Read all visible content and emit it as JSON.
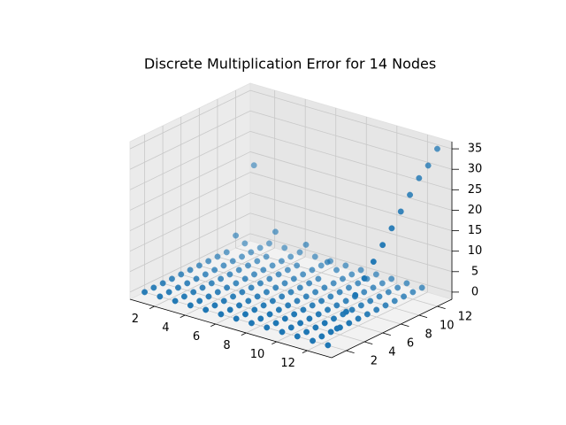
{
  "chart_data": {
    "type": "scatter3d",
    "title": "Discrete Multiplication Error for 14 Nodes",
    "color": "#1f77b4",
    "x": [
      1,
      2,
      3,
      4,
      5,
      6,
      7,
      8,
      9,
      10,
      11,
      12,
      13
    ],
    "y": [
      1,
      2,
      3,
      4,
      5,
      6,
      7,
      8,
      9,
      10,
      11,
      12,
      13
    ],
    "z": [
      [
        0,
        0,
        0,
        0,
        0,
        0,
        0,
        0,
        0,
        0,
        0,
        0,
        0
      ],
      [
        0,
        0,
        0,
        0,
        0,
        0,
        0,
        0,
        0,
        0,
        0,
        0,
        3
      ],
      [
        0,
        0,
        0,
        0,
        0,
        0,
        0,
        0,
        0,
        0,
        0,
        0,
        6
      ],
      [
        0,
        0,
        0,
        0,
        0,
        0,
        0,
        0,
        0,
        0,
        0,
        0,
        9
      ],
      [
        0,
        0,
        0,
        0,
        0,
        0,
        0,
        0,
        0,
        0,
        0,
        0,
        12
      ],
      [
        0,
        0,
        0,
        0,
        0,
        0,
        0,
        0,
        0,
        0,
        0,
        0,
        15
      ],
      [
        0,
        0,
        0,
        0,
        0,
        0,
        0,
        0,
        0,
        0,
        0,
        0,
        18
      ],
      [
        0,
        0,
        0,
        0,
        0,
        0,
        0,
        0,
        0,
        0,
        0,
        0,
        21
      ],
      [
        0,
        0,
        0,
        0,
        0,
        0,
        0,
        0,
        0,
        0,
        0,
        0,
        24
      ],
      [
        0,
        0,
        0,
        0,
        0,
        0,
        0,
        0,
        0,
        0,
        0,
        0,
        27
      ],
      [
        3,
        0,
        0,
        0,
        0,
        0,
        3,
        0,
        0,
        0,
        0,
        0,
        30
      ],
      [
        0,
        0,
        5,
        0,
        4,
        0,
        0,
        0,
        0,
        0,
        0,
        0,
        32
      ],
      [
        18,
        0,
        0,
        0,
        0,
        0,
        0,
        0,
        0,
        0,
        0,
        0,
        35
      ]
    ],
    "xlim": [
      0.4,
      13.6
    ],
    "ylim": [
      0.4,
      13.6
    ],
    "zlim": [
      -1.75,
      36.75
    ],
    "xticks": [
      2,
      4,
      6,
      8,
      10,
      12
    ],
    "yticks": [
      2,
      4,
      6,
      8,
      10,
      12
    ],
    "zticks": [
      0,
      5,
      10,
      15,
      20,
      25,
      30,
      35
    ],
    "grid": true
  }
}
